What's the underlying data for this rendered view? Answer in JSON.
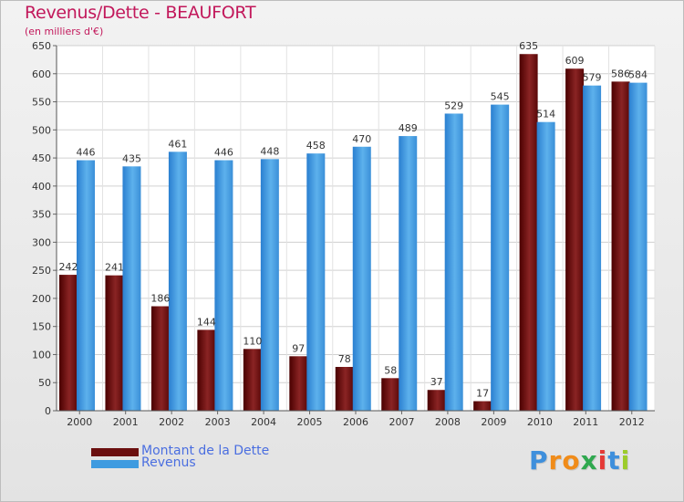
{
  "chart_data": {
    "type": "bar",
    "title": "Revenus/Dette - BEAUFORT",
    "subtitle": "(en milliers d'€)",
    "categories": [
      "2000",
      "2001",
      "2002",
      "2003",
      "2004",
      "2005",
      "2006",
      "2007",
      "2008",
      "2009",
      "2010",
      "2011",
      "2012"
    ],
    "series": [
      {
        "name": "Montant de la Dette",
        "color": "#6b0f0f",
        "values": [
          242,
          241,
          186,
          144,
          110,
          97,
          78,
          58,
          37,
          17,
          635,
          609,
          586
        ]
      },
      {
        "name": "Revenus",
        "color": "#3e9be0",
        "values": [
          446,
          435,
          461,
          446,
          448,
          458,
          470,
          489,
          529,
          545,
          514,
          579,
          584
        ]
      }
    ],
    "ylim": [
      0,
      650
    ],
    "yticks": [
      0,
      50,
      100,
      150,
      200,
      250,
      300,
      350,
      400,
      450,
      500,
      550,
      600,
      650
    ],
    "grid": true,
    "legend_position": "bottom-left"
  },
  "logo": {
    "text": "Proxiti"
  }
}
